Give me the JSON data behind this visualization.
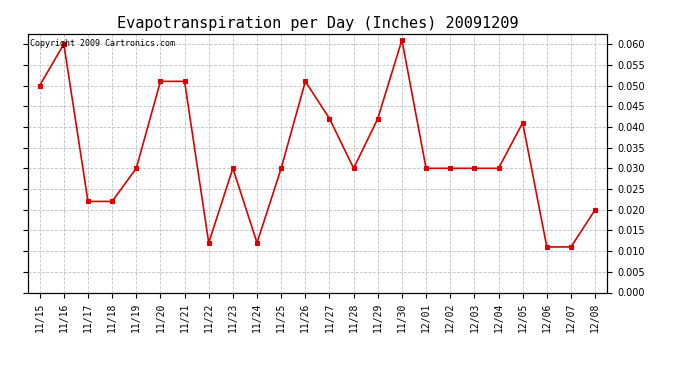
{
  "title": "Evapotranspiration per Day (Inches) 20091209",
  "copyright_text": "Copyright 2009 Cartronics.com",
  "labels": [
    "11/15",
    "11/16",
    "11/17",
    "11/18",
    "11/19",
    "11/20",
    "11/21",
    "11/22",
    "11/23",
    "11/24",
    "11/25",
    "11/26",
    "11/27",
    "11/28",
    "11/29",
    "11/30",
    "12/01",
    "12/02",
    "12/03",
    "12/04",
    "12/05",
    "12/06",
    "12/07",
    "12/08"
  ],
  "values": [
    0.05,
    0.06,
    0.022,
    0.022,
    0.03,
    0.051,
    0.051,
    0.012,
    0.03,
    0.012,
    0.03,
    0.051,
    0.042,
    0.03,
    0.042,
    0.061,
    0.03,
    0.03,
    0.03,
    0.03,
    0.041,
    0.011,
    0.011,
    0.02
  ],
  "line_color": "#dd0000",
  "marker": "s",
  "marker_size": 3,
  "marker_color": "#dd0000",
  "background_color": "#ffffff",
  "grid_color": "#bbbbbb",
  "ylim": [
    0.0,
    0.0625
  ],
  "yticks": [
    0.0,
    0.005,
    0.01,
    0.015,
    0.02,
    0.025,
    0.03,
    0.035,
    0.04,
    0.045,
    0.05,
    0.055,
    0.06
  ],
  "title_fontsize": 11,
  "copyright_fontsize": 6,
  "tick_fontsize": 7
}
